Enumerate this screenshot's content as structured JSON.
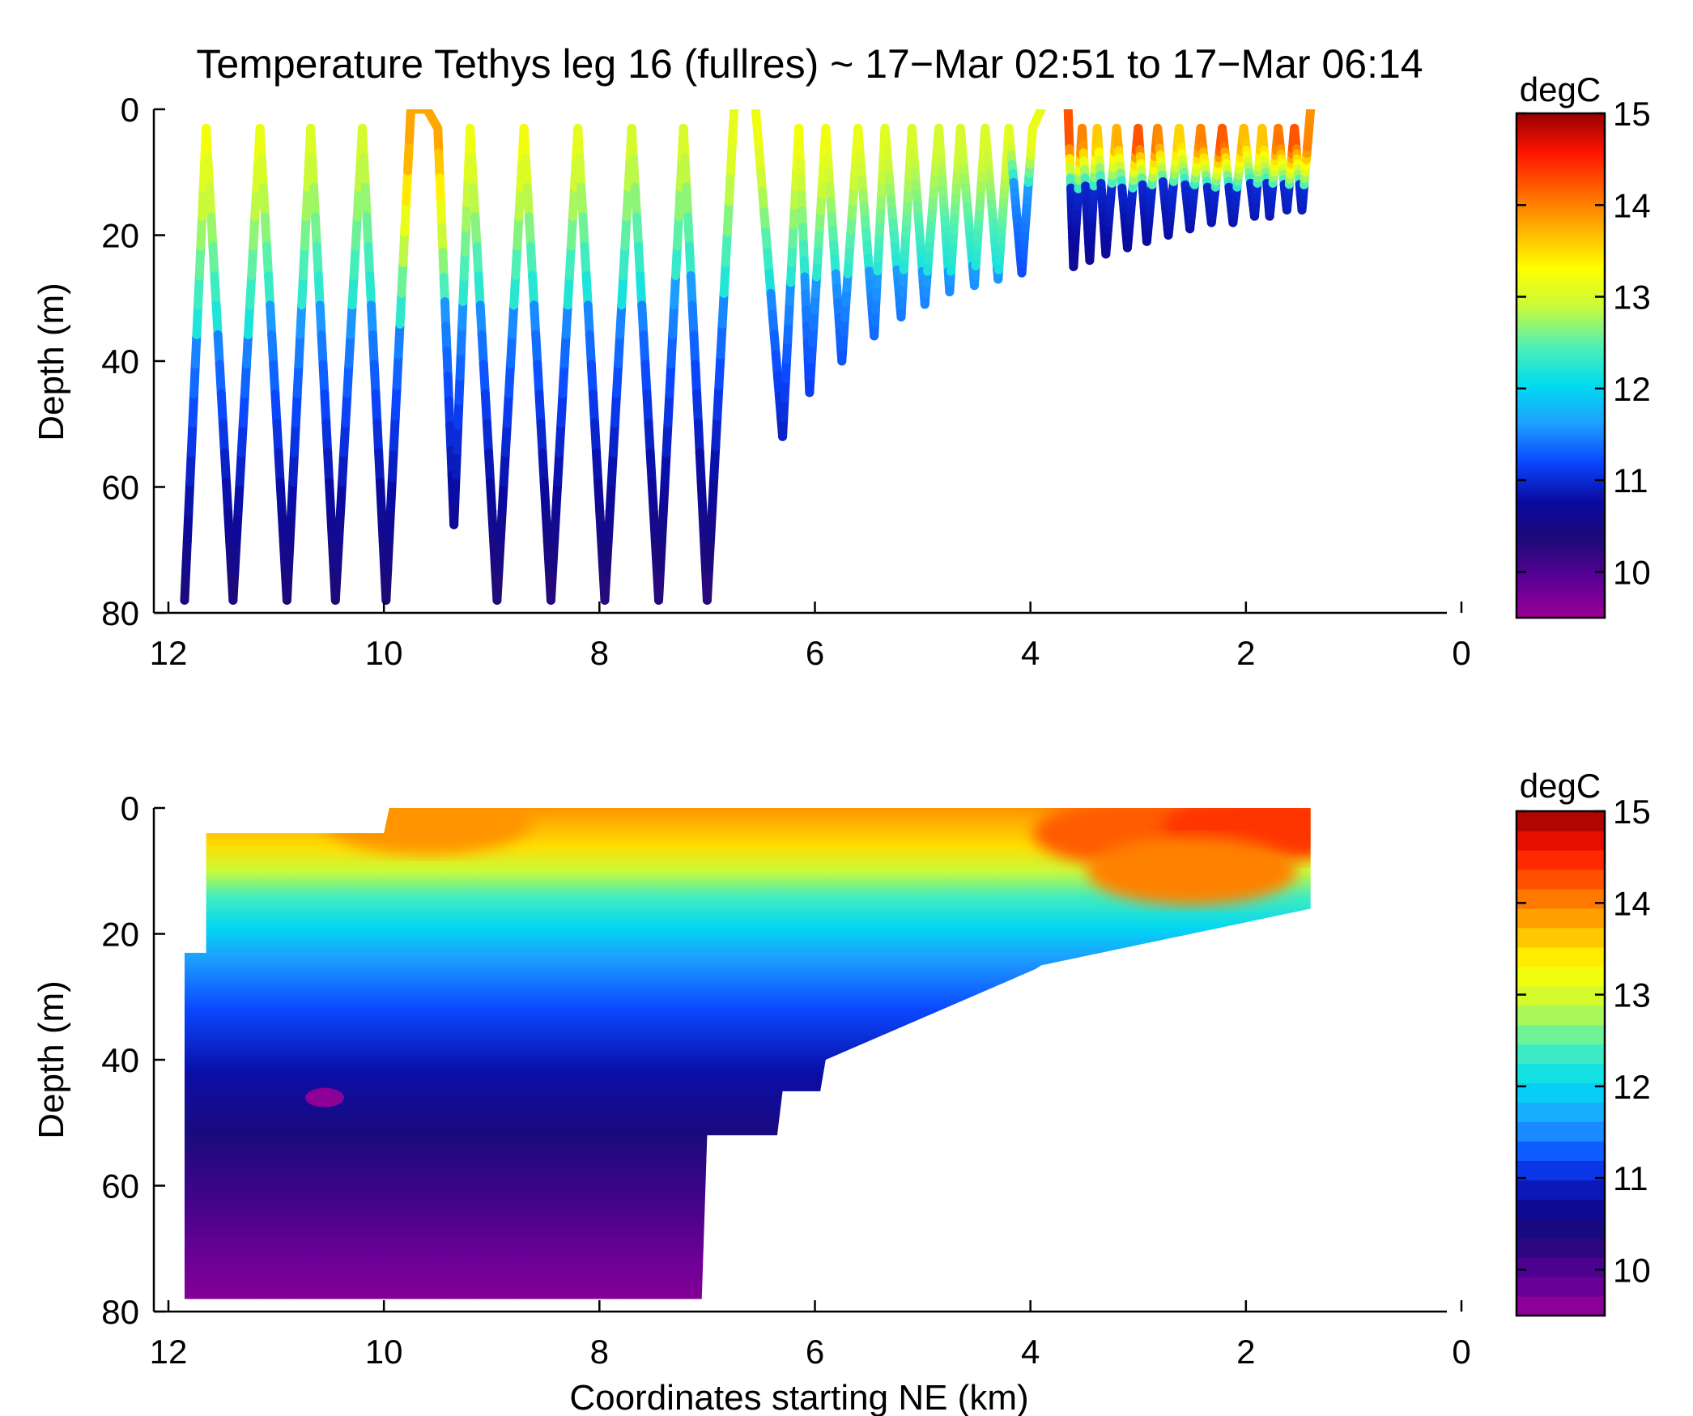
{
  "title": "Temperature Tethys leg 16 (fullres) ~ 17−Mar 02:51 to 17−Mar 06:14",
  "colormap": {
    "stops": [
      "#9b0096",
      "#5a0096",
      "#1e0a78",
      "#0a0aa0",
      "#0a46ff",
      "#1ea0ff",
      "#00dcf0",
      "#50f0b4",
      "#c8fa3c",
      "#ffff00",
      "#ffb400",
      "#ff6400",
      "#ff1400",
      "#960000"
    ],
    "range": [
      9.5,
      15
    ]
  },
  "colorbar": {
    "label": "degC",
    "ticks": [
      "10",
      "11",
      "12",
      "13",
      "14",
      "15"
    ],
    "tick_values": [
      10,
      11,
      12,
      13,
      14,
      15
    ],
    "range": [
      9.5,
      15
    ]
  },
  "chart_data": [
    {
      "type": "scatter",
      "description_mode": "track",
      "xlabel": "",
      "ylabel": "Depth (m)",
      "xlim": [
        12,
        0
      ],
      "ylim": [
        80,
        0
      ],
      "xticks": [
        "12",
        "10",
        "8",
        "6",
        "4",
        "2",
        "0"
      ],
      "xtick_values": [
        12,
        10,
        8,
        6,
        4,
        2,
        0
      ],
      "yticks": [
        "0",
        "20",
        "40",
        "60",
        "80"
      ],
      "ytick_values": [
        0,
        20,
        40,
        60,
        80
      ],
      "track": {
        "x": [
          11.85,
          11.65,
          11.4,
          11.15,
          10.9,
          10.68,
          10.45,
          10.2,
          9.98,
          9.75,
          9.6,
          9.5,
          9.35,
          9.2,
          8.95,
          8.7,
          8.45,
          8.2,
          7.95,
          7.7,
          7.45,
          7.22,
          7.0,
          6.75,
          6.55,
          6.3,
          6.15,
          6.05,
          5.9,
          5.75,
          5.6,
          5.45,
          5.35,
          5.2,
          5.1,
          4.98,
          4.85,
          4.75,
          4.65,
          4.52,
          4.42,
          4.3,
          4.2,
          4.08,
          3.98,
          3.9,
          3.65,
          3.6,
          3.52,
          3.45,
          3.38,
          3.3,
          3.2,
          3.1,
          3.0,
          2.92,
          2.82,
          2.72,
          2.62,
          2.52,
          2.42,
          2.32,
          2.22,
          2.12,
          2.02,
          1.92,
          1.85,
          1.78,
          1.7,
          1.62,
          1.55,
          1.48,
          1.4
        ],
        "depth": [
          78,
          3,
          78,
          3,
          78,
          3,
          78,
          3,
          78,
          0,
          0,
          3,
          66,
          3,
          78,
          3,
          78,
          3,
          78,
          3,
          78,
          3,
          78,
          0,
          0,
          52,
          3,
          45,
          3,
          40,
          3,
          36,
          3,
          33,
          3,
          31,
          3,
          29,
          3,
          28,
          3,
          27,
          3,
          26,
          3,
          0,
          0,
          25,
          3,
          24,
          3,
          23,
          3,
          22,
          3,
          21,
          3,
          20,
          3,
          19,
          3,
          18,
          3,
          18,
          3,
          17,
          3,
          17,
          3,
          16,
          3,
          16,
          0
        ]
      }
    },
    {
      "type": "heatmap",
      "description_mode": "contour",
      "xlabel": "Coordinates starting NE (km)",
      "ylabel": "Depth (m)",
      "xlim": [
        12,
        0
      ],
      "ylim": [
        80,
        0
      ],
      "xticks": [
        "12",
        "10",
        "8",
        "6",
        "4",
        "2",
        "0"
      ],
      "xtick_values": [
        12,
        10,
        8,
        6,
        4,
        2,
        0
      ],
      "yticks": [
        "0",
        "20",
        "40",
        "60",
        "80"
      ],
      "ytick_values": [
        0,
        20,
        40,
        60,
        80
      ]
    }
  ]
}
